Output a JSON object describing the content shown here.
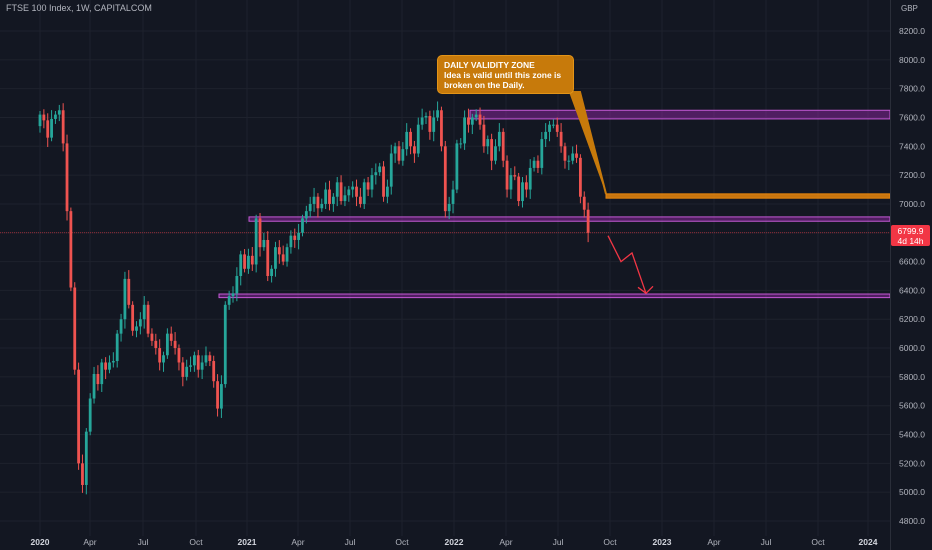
{
  "header": {
    "symbol_title": "FTSE 100 Index, 1W, CAPITALCOM"
  },
  "price_axis": {
    "currency_label": "GBP",
    "tick_labels": [
      "8200.0",
      "8000.0",
      "7800.0",
      "7600.0",
      "7400.0",
      "7200.0",
      "7000.0",
      "6800.0",
      "6600.0",
      "6400.0",
      "6200.0",
      "6000.0",
      "5800.0",
      "5600.0",
      "5400.0",
      "5200.0",
      "5000.0",
      "4800.0"
    ]
  },
  "time_axis": {
    "tick_labels": [
      "2020",
      "Apr",
      "Jul",
      "Oct",
      "2021",
      "Apr",
      "Jul",
      "Oct",
      "2022",
      "Apr",
      "Jul",
      "Oct",
      "2023",
      "Apr",
      "Jul",
      "Oct",
      "2024"
    ]
  },
  "callout": {
    "title": "DAILY VALIDITY ZONE",
    "body": "Idea is valid until this zone is broken on the Daily."
  },
  "last_price": {
    "value": "6799.9",
    "countdown": "4d 14h"
  },
  "colors": {
    "background": "#131722",
    "up_candle": "#26a69a",
    "down_candle": "#ef5350",
    "purple_zone": "#9c27b0",
    "orange_zone": "#e8860c",
    "projection_arrow": "#f23645",
    "grid": "#1e222d"
  },
  "chart_data": {
    "type": "candlestick",
    "title": "FTSE 100 Index, 1W, CAPITALCOM",
    "ylabel": "GBP",
    "ylim": [
      4760,
      8260
    ],
    "grid": true,
    "last_price": 6799.9,
    "time_ticks": [
      "2020",
      "Apr",
      "Jul",
      "Oct",
      "2021",
      "Apr",
      "Jul",
      "Oct",
      "2022",
      "Apr",
      "Jul",
      "Oct",
      "2023",
      "Apr",
      "Jul",
      "Oct",
      "2024"
    ],
    "price_ticks": [
      8200,
      8000,
      7800,
      7600,
      7400,
      7200,
      7000,
      6800,
      6600,
      6400,
      6200,
      6000,
      5800,
      5600,
      5400,
      5200,
      5000,
      4800
    ],
    "zones": [
      {
        "name": "resistance zone",
        "color": "#9c27b0",
        "low": 7590,
        "high": 7650
      },
      {
        "name": "support zone",
        "color": "#9c27b0",
        "low": 6880,
        "high": 6910
      },
      {
        "name": "daily validity zone",
        "color": "#e8860c",
        "low": 7040,
        "high": 7070
      },
      {
        "name": "lower support zone",
        "color": "#9c27b0",
        "low": 6350,
        "high": 6375
      }
    ],
    "projection": [
      {
        "week": 144,
        "price": 6780
      },
      {
        "week": 148,
        "price": 6600
      },
      {
        "week": 150,
        "price": 6660
      },
      {
        "week": 154,
        "price": 6380
      }
    ],
    "closes": [
      7620,
      7580,
      7460,
      7590,
      7620,
      7650,
      7420,
      6950,
      6420,
      5850,
      5200,
      5050,
      5420,
      5650,
      5820,
      5750,
      5900,
      5850,
      5900,
      5910,
      6100,
      6200,
      6480,
      6300,
      6120,
      6150,
      6200,
      6300,
      6100,
      6050,
      6000,
      5900,
      5950,
      6100,
      6050,
      6000,
      5900,
      5800,
      5870,
      5880,
      5950,
      5850,
      5900,
      5950,
      5910,
      5770,
      5580,
      5750,
      6300,
      6360,
      6380,
      6500,
      6650,
      6550,
      6640,
      6580,
      6900,
      6700,
      6750,
      6500,
      6550,
      6700,
      6650,
      6600,
      6700,
      6780,
      6750,
      6800,
      6900,
      6950,
      7000,
      7050,
      6970,
      7000,
      7100,
      7000,
      7050,
      7150,
      7020,
      7060,
      7100,
      7120,
      7050,
      7000,
      7150,
      7100,
      7200,
      7220,
      7260,
      7050,
      7120,
      7350,
      7400,
      7300,
      7380,
      7500,
      7400,
      7350,
      7550,
      7600,
      7610,
      7500,
      7600,
      7650,
      7400,
      6950,
      7000,
      7100,
      7420,
      7420,
      7600,
      7550,
      7600,
      7620,
      7550,
      7400,
      7450,
      7300,
      7400,
      7500,
      7300,
      7100,
      7200,
      7190,
      7020,
      7150,
      7100,
      7250,
      7300,
      7250,
      7450,
      7500,
      7550,
      7550,
      7500,
      7400,
      7300,
      7300,
      7350,
      7320,
      7050,
      6960,
      6800
    ]
  }
}
